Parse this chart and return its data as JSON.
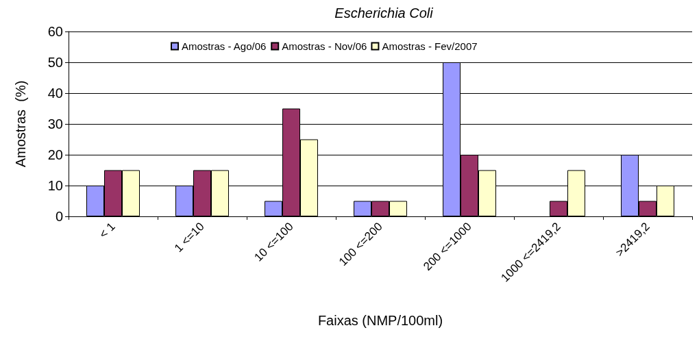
{
  "chart_data": {
    "type": "bar",
    "title": "Escherichia Coli",
    "xlabel": "Faixas (NMP/100ml)",
    "ylabel": "Amostras  (%)",
    "categories": [
      "< 1",
      "1 <=10",
      "10 <=100",
      "100 <=200",
      "200 <=1000",
      "1000 <=2419,2",
      ">2419,2"
    ],
    "series": [
      {
        "name": "Amostras - Ago/06",
        "color": "#9999ff",
        "values": [
          10,
          10,
          5,
          5,
          50,
          0,
          20
        ]
      },
      {
        "name": "Amostras - Nov/06",
        "color": "#993366",
        "values": [
          15,
          15,
          35,
          5,
          20,
          5,
          5
        ]
      },
      {
        "name": "Amostras - Fev/2007",
        "color": "#ffffcc",
        "values": [
          15,
          15,
          25,
          5,
          15,
          15,
          10
        ]
      }
    ],
    "ylim": [
      0,
      60
    ],
    "yticks": [
      0,
      10,
      20,
      30,
      40,
      50,
      60
    ],
    "grid": "y",
    "legend": "top"
  }
}
